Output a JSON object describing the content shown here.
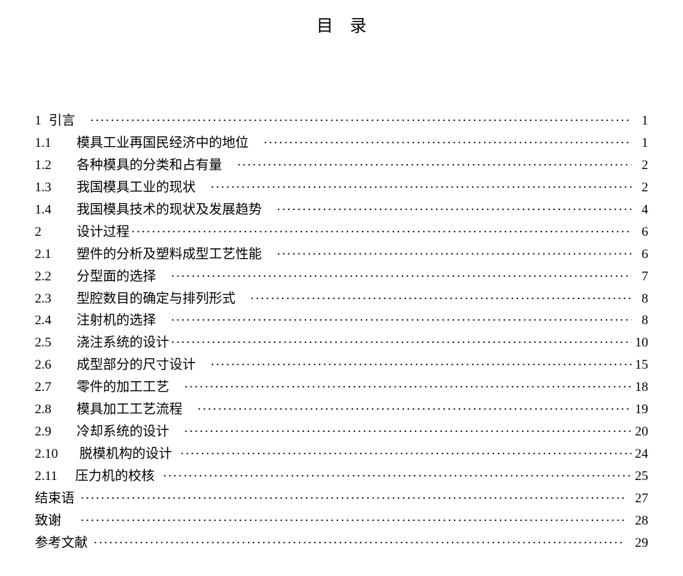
{
  "title": "目录",
  "entries": [
    {
      "num": "1",
      "label": "引言",
      "page": "1",
      "numClass": "num-narrow",
      "labelPad": "  "
    },
    {
      "num": "1.1",
      "label": "模具工业再国民经济中的地位",
      "page": "1",
      "labelPad": "  "
    },
    {
      "num": "1.2",
      "label": "各种模具的分类和占有量",
      "page": "2",
      "labelPad": "  "
    },
    {
      "num": "1.3",
      "label": "我国模具工业的现状",
      "page": "2",
      "labelPad": "  "
    },
    {
      "num": "1.4",
      "label": "我国模具技术的现状及发展趋势",
      "page": "4",
      "labelPad": "  "
    },
    {
      "num": "2",
      "label": "设计过程",
      "page": "6"
    },
    {
      "num": "2.1",
      "label": "塑件的分析及塑料成型工艺性能",
      "page": "6",
      "labelPad": "  "
    },
    {
      "num": "2.2",
      "label": "分型面的选择",
      "page": "7",
      "labelPad": "  "
    },
    {
      "num": "2.3",
      "label": "型腔数目的确定与排列形式",
      "page": "8",
      "labelPad": "  "
    },
    {
      "num": "2.4",
      "label": "注射机的选择",
      "page": "8",
      "labelPad": "  "
    },
    {
      "num": "2.5",
      "label": "浇注系统的设计",
      "page": "10"
    },
    {
      "num": "2.6",
      "label": "成型部分的尺寸设计",
      "page": "15",
      "labelPad": "  "
    },
    {
      "num": "2.7",
      "label": "零件的加工工艺",
      "page": "18",
      "labelPad": "  "
    },
    {
      "num": "2.8",
      "label": "模具加工工艺流程",
      "page": "19",
      "labelPad": "  "
    },
    {
      "num": "2.9",
      "label": "冷却系统的设计",
      "page": "20",
      "labelPad": "  "
    },
    {
      "num": "2.10",
      "label": "脱模机构的设计",
      "page": "24",
      "numClass": "num-wide",
      "labelPad": " "
    },
    {
      "num": "2.11",
      "label": "压力机的校核",
      "page": "25",
      "numClass": "num-wide",
      "labelPad": " ",
      "tight": true
    },
    {
      "num": "结束语",
      "label": "",
      "page": "27",
      "numClass": "num-narrow",
      "pageSpaced": true
    },
    {
      "num": "致谢",
      "label": "",
      "page": "28",
      "numClass": "num-narrow",
      "labelPad": "  ",
      "pageSpaced": true
    },
    {
      "num": "参考文献",
      "label": "",
      "page": "29",
      "numClass": "num-narrow",
      "pageSpaced": true
    }
  ]
}
